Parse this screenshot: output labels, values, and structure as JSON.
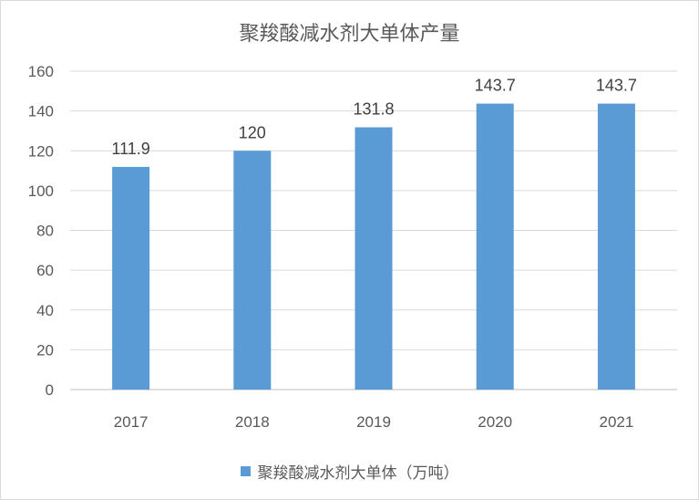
{
  "chart_data": {
    "type": "bar",
    "title": "聚羧酸减水剂大单体产量",
    "categories": [
      "2017",
      "2018",
      "2019",
      "2020",
      "2021"
    ],
    "series": [
      {
        "name": "聚羧酸减水剂大单体（万吨）",
        "values": [
          111.9,
          120,
          131.8,
          143.7,
          143.7
        ]
      }
    ],
    "data_labels": [
      "111.9",
      "120",
      "131.8",
      "143.7",
      "143.7"
    ],
    "yticks": [
      0,
      20,
      40,
      60,
      80,
      100,
      120,
      140,
      160
    ],
    "ylim": [
      0,
      160
    ],
    "grid": true,
    "legend_position": "bottom",
    "colors": {
      "bar": "#5b9bd5",
      "grid": "#d9d9d9",
      "axis": "#bfbfbf"
    }
  }
}
